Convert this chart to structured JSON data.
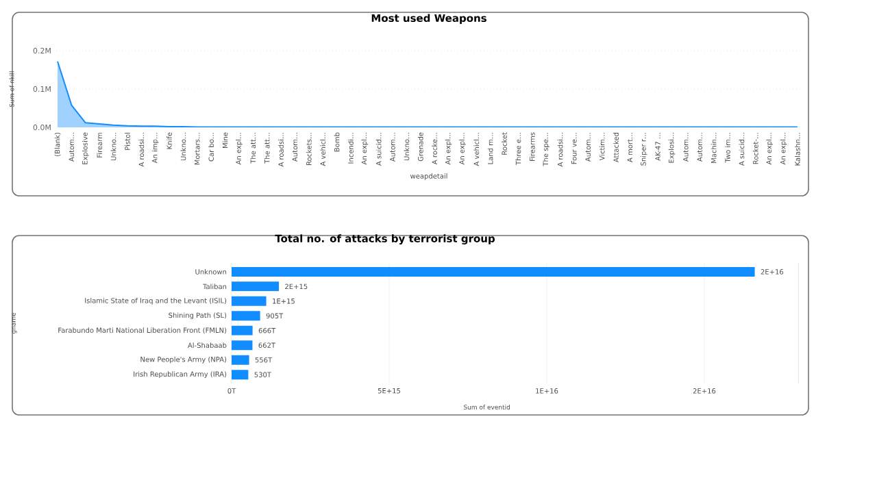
{
  "chart_data": [
    {
      "type": "area",
      "title": "Most used Weapons",
      "xlabel": "weapdetail",
      "ylabel": "Sum of nkill",
      "categories": [
        "(Blank)",
        "Autom…",
        "Explosive",
        "Firearm",
        "Unkno…",
        "Pistol",
        "A roadsi…",
        "An imp…",
        "Knife",
        "Unkno…",
        "Mortars…",
        "Car bo…",
        "Mine",
        "An expl…",
        "The att…",
        "The att…",
        "A roadsi…",
        "Autom…",
        "Rockets…",
        "A vehicl…",
        "Bomb",
        "Incendi…",
        "An expl…",
        "A suicid…",
        "Autom…",
        "Unkno…",
        "Grenade",
        "A rocke…",
        "An expl…",
        "An expl…",
        "A vehicl…",
        "Land m…",
        "Rocket",
        "Three e…",
        "Firearms",
        "The spe…",
        "A roadsi…",
        "Four ve…",
        "Autom…",
        "Victim…",
        "Attacked",
        "A mort…",
        "Sniper r…",
        "AK-47 …",
        "Explosi…",
        "Autom…",
        "Autom…",
        "Machin…",
        "Two im…",
        "A suicid…",
        "Rocket-…",
        "An expl…",
        "An expl…",
        "Kalashn…"
      ],
      "values": [
        172000,
        58000,
        12000,
        9000,
        6000,
        4000,
        3000,
        3000,
        2000,
        2000,
        1000,
        1000,
        1000,
        1000,
        1000,
        1000,
        1000,
        1000,
        1000,
        1000,
        1000,
        1000,
        1000,
        1000,
        1000,
        1000,
        1000,
        1000,
        1000,
        1000,
        1000,
        1000,
        1000,
        1000,
        1000,
        1000,
        1000,
        1000,
        1000,
        1000,
        1000,
        1000,
        1000,
        1000,
        1000,
        1000,
        1000,
        1000,
        1000,
        1000,
        1000,
        1000,
        1000,
        1000
      ],
      "color": "#118dff",
      "ylim": [
        0,
        200000
      ],
      "yticks": [
        {
          "value": 0,
          "label": "0.0M"
        },
        {
          "value": 100000,
          "label": "0.1M"
        },
        {
          "value": 200000,
          "label": "0.2M"
        }
      ],
      "grid": "y"
    },
    {
      "type": "bar",
      "orientation": "horizontal",
      "title": "Total no. of attacks by terrorist group",
      "xlabel": "Sum of eventid",
      "ylabel": "gname",
      "categories": [
        "Unknown",
        "Taliban",
        "Islamic State of Iraq and the Levant (ISIL)",
        "Shining Path (SL)",
        "Farabundo Marti National Liberation Front (FMLN)",
        "Al-Shabaab",
        "New People's Army (NPA)",
        "Irish Republican Army (IRA)"
      ],
      "values": [
        1.66e+16,
        1500000000000000.0,
        1100000000000000.0,
        905000000000000.0,
        666000000000000.0,
        662000000000000.0,
        556000000000000.0,
        530000000000000.0
      ],
      "value_labels": [
        "2E+16",
        "2E+15",
        "1E+15",
        "905T",
        "666T",
        "662T",
        "556T",
        "530T"
      ],
      "color": "#118dff",
      "xlim": [
        0,
        1.8e+16
      ],
      "xticks": [
        {
          "value": 0,
          "label": "0T"
        },
        {
          "value": 5000000000000000.0,
          "label": "5E+15"
        },
        {
          "value": 1e+16,
          "label": "1E+16"
        },
        {
          "value": 1.5e+16,
          "label": "2E+16"
        }
      ],
      "grid": "x"
    }
  ]
}
